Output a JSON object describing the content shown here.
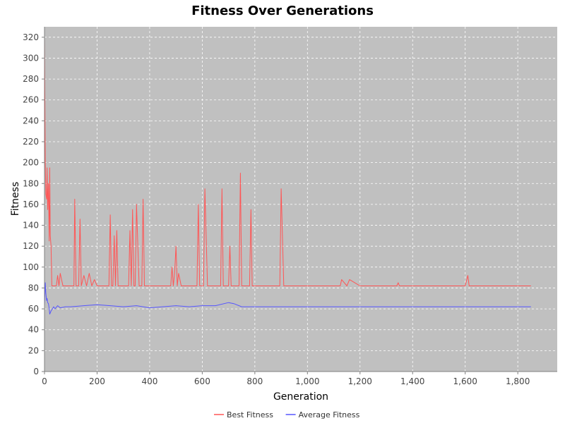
{
  "chart_data": {
    "type": "line",
    "title": "Fitness Over Generations",
    "xlabel": "Generation",
    "ylabel": "Fitness",
    "xlim": [
      0,
      1950
    ],
    "ylim": [
      0,
      330
    ],
    "x_ticks": [
      0,
      200,
      400,
      600,
      800,
      1000,
      1200,
      1400,
      1600,
      1800
    ],
    "x_tick_labels": [
      "0",
      "200",
      "400",
      "600",
      "800",
      "1,000",
      "1,200",
      "1,400",
      "1,600",
      "1,800"
    ],
    "y_ticks": [
      0,
      20,
      40,
      60,
      80,
      100,
      120,
      140,
      160,
      180,
      200,
      220,
      240,
      260,
      280,
      300,
      320
    ],
    "grid": true,
    "legend_position": "bottom-center",
    "plot_background": "#c0c0c0",
    "series": [
      {
        "name": "Best Fitness",
        "color": "#ff5555",
        "x": [
          0,
          3,
          5,
          8,
          10,
          12,
          15,
          18,
          20,
          22,
          25,
          28,
          30,
          32,
          35,
          40,
          45,
          50,
          55,
          60,
          70,
          80,
          90,
          100,
          105,
          110,
          112,
          115,
          120,
          125,
          130,
          135,
          140,
          150,
          160,
          170,
          180,
          190,
          200,
          220,
          240,
          245,
          250,
          255,
          260,
          265,
          270,
          275,
          280,
          300,
          320,
          325,
          330,
          335,
          340,
          345,
          350,
          360,
          370,
          375,
          380,
          400,
          420,
          440,
          460,
          480,
          485,
          490,
          495,
          500,
          505,
          510,
          520,
          550,
          580,
          585,
          590,
          600,
          605,
          610,
          620,
          630,
          640,
          660,
          670,
          675,
          680,
          690,
          700,
          705,
          710,
          720,
          730,
          740,
          745,
          750,
          760,
          770,
          780,
          785,
          790,
          800,
          850,
          890,
          895,
          900,
          910,
          950,
          1000,
          1050,
          1100,
          1125,
          1130,
          1150,
          1160,
          1200,
          1250,
          1300,
          1340,
          1345,
          1350,
          1400,
          1430,
          1450,
          1500,
          1550,
          1600,
          1610,
          1615,
          1630,
          1640,
          1650,
          1700,
          1800,
          1820,
          1830,
          1850
        ],
        "values": [
          320,
          200,
          170,
          165,
          195,
          155,
          180,
          125,
          195,
          130,
          120,
          82,
          82,
          82,
          82,
          82,
          82,
          92,
          82,
          94,
          82,
          82,
          82,
          82,
          82,
          82,
          82,
          165,
          82,
          82,
          82,
          146,
          82,
          92,
          82,
          94,
          82,
          88,
          82,
          82,
          82,
          82,
          150,
          82,
          82,
          130,
          82,
          135,
          82,
          82,
          82,
          135,
          82,
          155,
          82,
          82,
          160,
          82,
          82,
          165,
          82,
          82,
          82,
          82,
          82,
          82,
          100,
          82,
          95,
          120,
          82,
          94,
          82,
          82,
          82,
          160,
          82,
          82,
          82,
          175,
          82,
          82,
          82,
          82,
          82,
          175,
          82,
          82,
          82,
          120,
          82,
          82,
          82,
          82,
          190,
          82,
          82,
          82,
          82,
          155,
          82,
          82,
          82,
          82,
          82,
          175,
          82,
          82,
          82,
          82,
          82,
          82,
          88,
          82,
          88,
          82,
          82,
          82,
          82,
          85,
          82,
          82,
          82,
          82,
          82,
          82,
          82,
          92,
          82,
          82,
          82,
          82,
          82,
          82,
          82,
          82,
          82
        ]
      },
      {
        "name": "Average Fitness",
        "color": "#5555ff",
        "x": [
          0,
          3,
          5,
          8,
          10,
          12,
          15,
          18,
          20,
          25,
          30,
          35,
          40,
          50,
          60,
          80,
          100,
          150,
          200,
          250,
          300,
          350,
          400,
          450,
          500,
          550,
          600,
          650,
          700,
          720,
          750,
          800,
          900,
          1000,
          1100,
          1200,
          1300,
          1400,
          1500,
          1600,
          1700,
          1800,
          1850
        ],
        "values": [
          63,
          85,
          75,
          68,
          70,
          66,
          65,
          60,
          55,
          58,
          60,
          62,
          60,
          63,
          61,
          62,
          62,
          63,
          64,
          63,
          62,
          63,
          61,
          62,
          63,
          62,
          63,
          63,
          66,
          65,
          62,
          62,
          62,
          62,
          62,
          62,
          62,
          62,
          62,
          62,
          62,
          62,
          62
        ]
      }
    ]
  }
}
